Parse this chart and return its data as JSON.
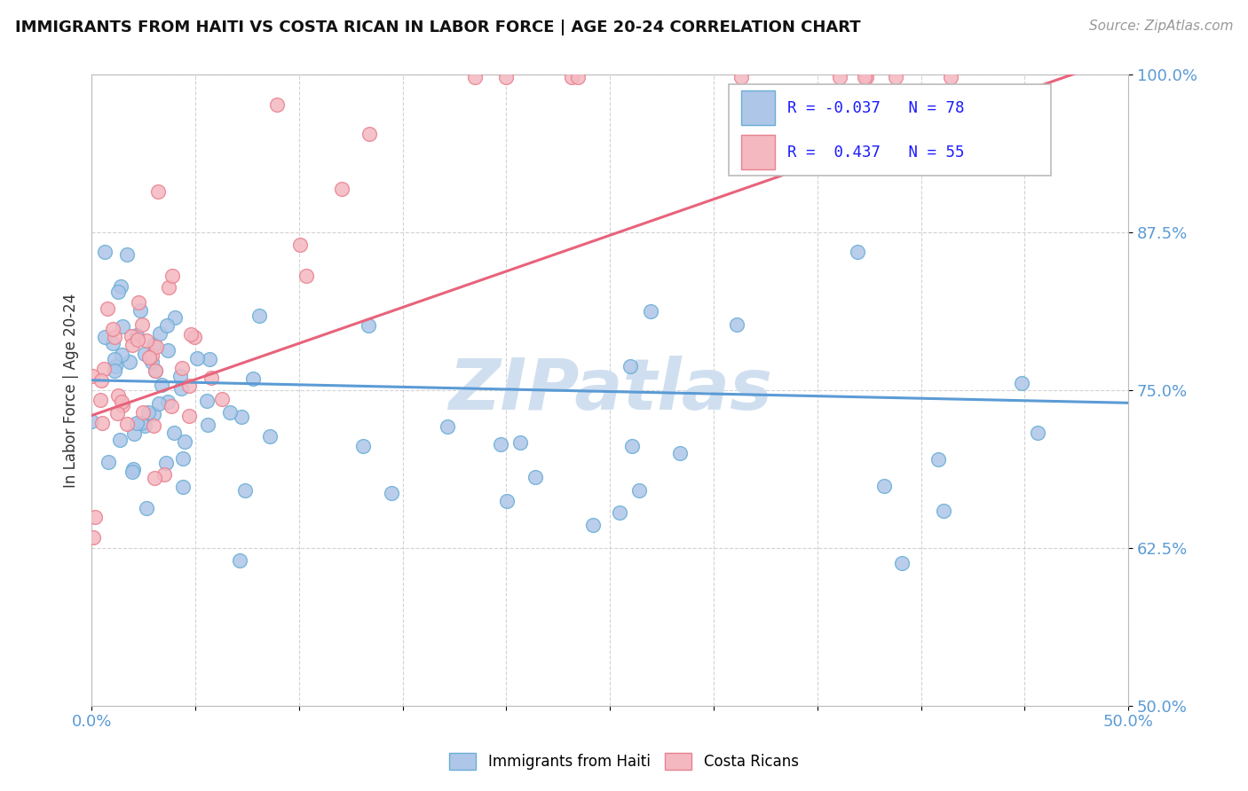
{
  "title": "IMMIGRANTS FROM HAITI VS COSTA RICAN IN LABOR FORCE | AGE 20-24 CORRELATION CHART",
  "source": "Source: ZipAtlas.com",
  "ylabel": "In Labor Force | Age 20-24",
  "xlim": [
    0.0,
    0.5
  ],
  "ylim": [
    0.5,
    1.0
  ],
  "xticks": [
    0.0,
    0.05,
    0.1,
    0.15,
    0.2,
    0.25,
    0.3,
    0.35,
    0.4,
    0.45,
    0.5
  ],
  "xticklabels": [
    "0.0%",
    "",
    "",
    "",
    "",
    "",
    "",
    "",
    "",
    "",
    "50.0%"
  ],
  "yticks": [
    0.5,
    0.625,
    0.75,
    0.875,
    1.0
  ],
  "yticklabels": [
    "50.0%",
    "62.5%",
    "75.0%",
    "87.5%",
    "100.0%"
  ],
  "haiti_color": "#aec6e8",
  "costa_rica_color": "#f4b8c1",
  "haiti_edge_color": "#6aaed6",
  "costa_rica_edge_color": "#e8828f",
  "haiti_line_color": "#5b9bd5",
  "costa_rica_line_color": "#e8637a",
  "R_haiti": -0.037,
  "N_haiti": 78,
  "R_costa": 0.437,
  "N_costa": 55,
  "background_color": "#ffffff",
  "grid_color": "#c8c8c8",
  "watermark_text": "ZIPatlas",
  "watermark_color": "#d0dff0"
}
